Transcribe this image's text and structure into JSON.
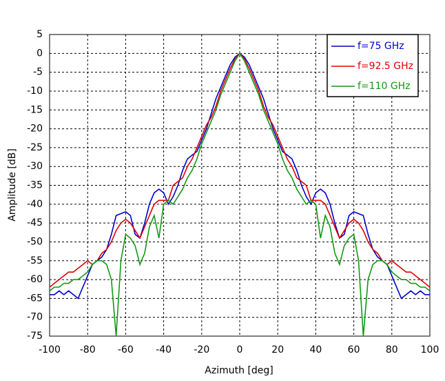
{
  "chart_data": {
    "type": "line",
    "x_label": "Azimuth [deg]",
    "y_label": "Amplitude [dB]",
    "xlim": [
      -100,
      100
    ],
    "ylim": [
      -75,
      5
    ],
    "xticks": [
      -100,
      -80,
      -60,
      -40,
      -20,
      0,
      20,
      40,
      60,
      80,
      100
    ],
    "yticks": [
      -75,
      -70,
      -65,
      -60,
      -55,
      -50,
      -45,
      -40,
      -35,
      -30,
      -25,
      -20,
      -15,
      -10,
      -5,
      0,
      5
    ],
    "grid": true,
    "legend": "upper right",
    "x": [
      -100,
      -97.5,
      -95,
      -92.5,
      -90,
      -87.5,
      -85,
      -82.5,
      -80,
      -77.5,
      -75,
      -72.5,
      -70,
      -67.5,
      -65,
      -62.5,
      -60,
      -57.5,
      -55,
      -52.5,
      -50,
      -47.5,
      -45,
      -42.5,
      -40,
      -37.5,
      -35,
      -32.5,
      -30,
      -27.5,
      -25,
      -22.5,
      -20,
      -17.5,
      -15,
      -12.5,
      -10,
      -7.5,
      -5,
      -2.5,
      0,
      2.5,
      5,
      7.5,
      10,
      12.5,
      15,
      17.5,
      20,
      22.5,
      25,
      27.5,
      30,
      32.5,
      35,
      37.5,
      40,
      42.5,
      45,
      47.5,
      50,
      52.5,
      55,
      57.5,
      60,
      62.5,
      65,
      67.5,
      70,
      72.5,
      75,
      77.5,
      80,
      82.5,
      85,
      87.5,
      90,
      92.5,
      95,
      97.5,
      100
    ],
    "series": [
      {
        "name": "f=75 GHz",
        "color": "#0000cc",
        "values": [
          -64,
          -64,
          -63,
          -64,
          -63,
          -64,
          -65,
          -62,
          -59,
          -56,
          -55,
          -54,
          -52,
          -48,
          -43,
          -42.5,
          -42,
          -43,
          -48,
          -49,
          -45,
          -40,
          -37,
          -36,
          -37,
          -40,
          -38,
          -35,
          -31,
          -28,
          -27,
          -26,
          -23,
          -20,
          -16,
          -12,
          -9,
          -6,
          -3,
          -1,
          0,
          -1,
          -3,
          -6,
          -9,
          -12,
          -16,
          -20,
          -23,
          -26,
          -27,
          -28,
          -31,
          -35,
          -38,
          -40,
          -37,
          -36,
          -37,
          -40,
          -45,
          -49,
          -48,
          -43,
          -42,
          -42.5,
          -43,
          -48,
          -52,
          -54,
          -55,
          -56,
          -59,
          -62,
          -65,
          -64,
          -63,
          -64,
          -63,
          -64,
          -64
        ]
      },
      {
        "name": "f=92.5 GHz",
        "color": "#e00000",
        "values": [
          -62,
          -61,
          -60,
          -59,
          -58,
          -58,
          -57,
          -56,
          -55,
          -56,
          -55,
          -53,
          -52,
          -50,
          -47,
          -45,
          -44,
          -45,
          -47,
          -49,
          -46,
          -43,
          -40,
          -39,
          -39,
          -39,
          -35,
          -34,
          -33,
          -30,
          -28,
          -25,
          -22,
          -19,
          -17,
          -14,
          -10,
          -7,
          -4,
          -1.5,
          0,
          -1.5,
          -4,
          -7,
          -10,
          -14,
          -17,
          -19,
          -22,
          -25,
          -28,
          -30,
          -33,
          -34,
          -35,
          -39,
          -39,
          -39,
          -40,
          -43,
          -46,
          -49,
          -47,
          -45,
          -44,
          -45,
          -47,
          -50,
          -52,
          -53,
          -55,
          -56,
          -55,
          -56,
          -57,
          -58,
          -58,
          -59,
          -60,
          -61,
          -62
        ]
      },
      {
        "name": "f=110 GHz",
        "color": "#119911",
        "values": [
          -63,
          -62,
          -62,
          -61,
          -61,
          -60,
          -60,
          -59,
          -58,
          -56,
          -55,
          -55,
          -56,
          -60,
          -75,
          -55,
          -48,
          -49,
          -51,
          -56,
          -53,
          -46,
          -43,
          -49,
          -40,
          -39,
          -40,
          -38,
          -36,
          -33,
          -31,
          -28,
          -24,
          -21,
          -18,
          -15,
          -11,
          -8,
          -5,
          -2,
          0,
          -2,
          -5,
          -8,
          -11,
          -15,
          -18,
          -21,
          -24,
          -28,
          -31,
          -33,
          -36,
          -38,
          -40,
          -39,
          -40,
          -49,
          -43,
          -46,
          -53,
          -56,
          -51,
          -49,
          -48,
          -55,
          -75,
          -60,
          -56,
          -55,
          -55,
          -56,
          -58,
          -59,
          -60,
          -60,
          -61,
          -61,
          -62,
          -62,
          -63
        ]
      }
    ]
  }
}
